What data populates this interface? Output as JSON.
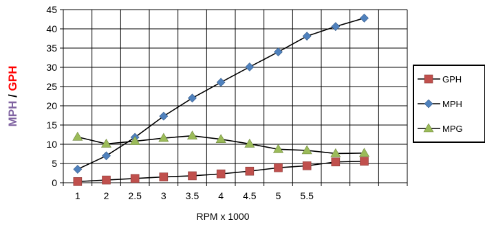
{
  "chart_data": {
    "type": "line",
    "categories": [
      "1",
      "2",
      "2.5",
      "3",
      "3.5",
      "4",
      "4.5",
      "5",
      "5.5",
      "",
      "",
      ""
    ],
    "xlabel": "RPM x 1000",
    "ylabel_parts": [
      {
        "text": "MPH",
        "color": "#8064A2"
      },
      {
        "text": " / ",
        "color": "#000000"
      },
      {
        "text": "GPH",
        "color": "#FF0000"
      }
    ],
    "ylim": [
      0,
      45
    ],
    "yticks": [
      0,
      5,
      10,
      15,
      20,
      25,
      30,
      35,
      40,
      45
    ],
    "grid": true,
    "legend_position": "right",
    "series": [
      {
        "name": "GPH",
        "marker": "square",
        "color": "#C0504D",
        "values": [
          0.3,
          0.7,
          1.1,
          1.5,
          1.8,
          2.3,
          3.0,
          3.9,
          4.4,
          5.4,
          5.6,
          null
        ]
      },
      {
        "name": "MPH",
        "marker": "diamond",
        "color": "#4F81BD",
        "values": [
          3.5,
          7.0,
          11.8,
          17.3,
          22.0,
          26.1,
          30.1,
          34.0,
          38.1,
          40.6,
          42.8,
          null
        ]
      },
      {
        "name": "MPG",
        "marker": "triangle",
        "color": "#9BBB59",
        "values": [
          11.9,
          10.1,
          10.8,
          11.6,
          12.2,
          11.3,
          10.1,
          8.7,
          8.4,
          7.6,
          7.7,
          null
        ]
      }
    ]
  }
}
